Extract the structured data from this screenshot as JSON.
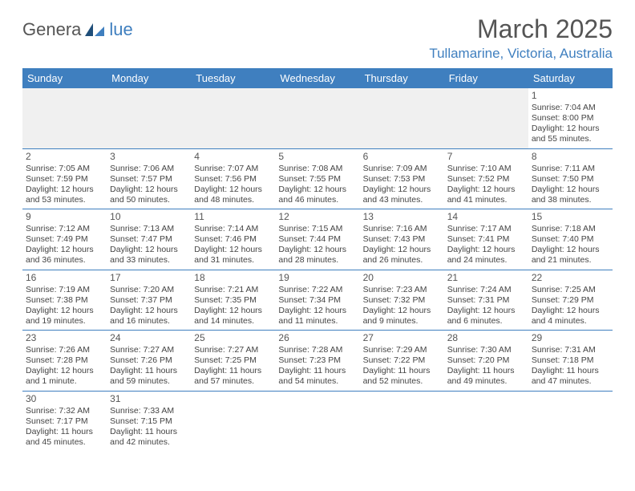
{
  "logo": {
    "textA": "Genera",
    "textB": "lue"
  },
  "title": "March 2025",
  "location": "Tullamarine, Victoria, Australia",
  "colors": {
    "accent": "#3f7fbf",
    "headerText": "#ffffff",
    "bodyText": "#444444",
    "background": "#ffffff",
    "blankRow": "#f0f0f0",
    "titleText": "#555555"
  },
  "dayHeaders": [
    "Sunday",
    "Monday",
    "Tuesday",
    "Wednesday",
    "Thursday",
    "Friday",
    "Saturday"
  ],
  "weeks": [
    [
      null,
      null,
      null,
      null,
      null,
      null,
      {
        "n": "1",
        "sunrise": "7:04 AM",
        "sunset": "8:00 PM",
        "daylight": "12 hours and 55 minutes."
      }
    ],
    [
      {
        "n": "2",
        "sunrise": "7:05 AM",
        "sunset": "7:59 PM",
        "daylight": "12 hours and 53 minutes."
      },
      {
        "n": "3",
        "sunrise": "7:06 AM",
        "sunset": "7:57 PM",
        "daylight": "12 hours and 50 minutes."
      },
      {
        "n": "4",
        "sunrise": "7:07 AM",
        "sunset": "7:56 PM",
        "daylight": "12 hours and 48 minutes."
      },
      {
        "n": "5",
        "sunrise": "7:08 AM",
        "sunset": "7:55 PM",
        "daylight": "12 hours and 46 minutes."
      },
      {
        "n": "6",
        "sunrise": "7:09 AM",
        "sunset": "7:53 PM",
        "daylight": "12 hours and 43 minutes."
      },
      {
        "n": "7",
        "sunrise": "7:10 AM",
        "sunset": "7:52 PM",
        "daylight": "12 hours and 41 minutes."
      },
      {
        "n": "8",
        "sunrise": "7:11 AM",
        "sunset": "7:50 PM",
        "daylight": "12 hours and 38 minutes."
      }
    ],
    [
      {
        "n": "9",
        "sunrise": "7:12 AM",
        "sunset": "7:49 PM",
        "daylight": "12 hours and 36 minutes."
      },
      {
        "n": "10",
        "sunrise": "7:13 AM",
        "sunset": "7:47 PM",
        "daylight": "12 hours and 33 minutes."
      },
      {
        "n": "11",
        "sunrise": "7:14 AM",
        "sunset": "7:46 PM",
        "daylight": "12 hours and 31 minutes."
      },
      {
        "n": "12",
        "sunrise": "7:15 AM",
        "sunset": "7:44 PM",
        "daylight": "12 hours and 28 minutes."
      },
      {
        "n": "13",
        "sunrise": "7:16 AM",
        "sunset": "7:43 PM",
        "daylight": "12 hours and 26 minutes."
      },
      {
        "n": "14",
        "sunrise": "7:17 AM",
        "sunset": "7:41 PM",
        "daylight": "12 hours and 24 minutes."
      },
      {
        "n": "15",
        "sunrise": "7:18 AM",
        "sunset": "7:40 PM",
        "daylight": "12 hours and 21 minutes."
      }
    ],
    [
      {
        "n": "16",
        "sunrise": "7:19 AM",
        "sunset": "7:38 PM",
        "daylight": "12 hours and 19 minutes."
      },
      {
        "n": "17",
        "sunrise": "7:20 AM",
        "sunset": "7:37 PM",
        "daylight": "12 hours and 16 minutes."
      },
      {
        "n": "18",
        "sunrise": "7:21 AM",
        "sunset": "7:35 PM",
        "daylight": "12 hours and 14 minutes."
      },
      {
        "n": "19",
        "sunrise": "7:22 AM",
        "sunset": "7:34 PM",
        "daylight": "12 hours and 11 minutes."
      },
      {
        "n": "20",
        "sunrise": "7:23 AM",
        "sunset": "7:32 PM",
        "daylight": "12 hours and 9 minutes."
      },
      {
        "n": "21",
        "sunrise": "7:24 AM",
        "sunset": "7:31 PM",
        "daylight": "12 hours and 6 minutes."
      },
      {
        "n": "22",
        "sunrise": "7:25 AM",
        "sunset": "7:29 PM",
        "daylight": "12 hours and 4 minutes."
      }
    ],
    [
      {
        "n": "23",
        "sunrise": "7:26 AM",
        "sunset": "7:28 PM",
        "daylight": "12 hours and 1 minute."
      },
      {
        "n": "24",
        "sunrise": "7:27 AM",
        "sunset": "7:26 PM",
        "daylight": "11 hours and 59 minutes."
      },
      {
        "n": "25",
        "sunrise": "7:27 AM",
        "sunset": "7:25 PM",
        "daylight": "11 hours and 57 minutes."
      },
      {
        "n": "26",
        "sunrise": "7:28 AM",
        "sunset": "7:23 PM",
        "daylight": "11 hours and 54 minutes."
      },
      {
        "n": "27",
        "sunrise": "7:29 AM",
        "sunset": "7:22 PM",
        "daylight": "11 hours and 52 minutes."
      },
      {
        "n": "28",
        "sunrise": "7:30 AM",
        "sunset": "7:20 PM",
        "daylight": "11 hours and 49 minutes."
      },
      {
        "n": "29",
        "sunrise": "7:31 AM",
        "sunset": "7:18 PM",
        "daylight": "11 hours and 47 minutes."
      }
    ],
    [
      {
        "n": "30",
        "sunrise": "7:32 AM",
        "sunset": "7:17 PM",
        "daylight": "11 hours and 45 minutes."
      },
      {
        "n": "31",
        "sunrise": "7:33 AM",
        "sunset": "7:15 PM",
        "daylight": "11 hours and 42 minutes."
      },
      null,
      null,
      null,
      null,
      null
    ]
  ],
  "labels": {
    "sunrise": "Sunrise: ",
    "sunset": "Sunset: ",
    "daylight": "Daylight: "
  }
}
